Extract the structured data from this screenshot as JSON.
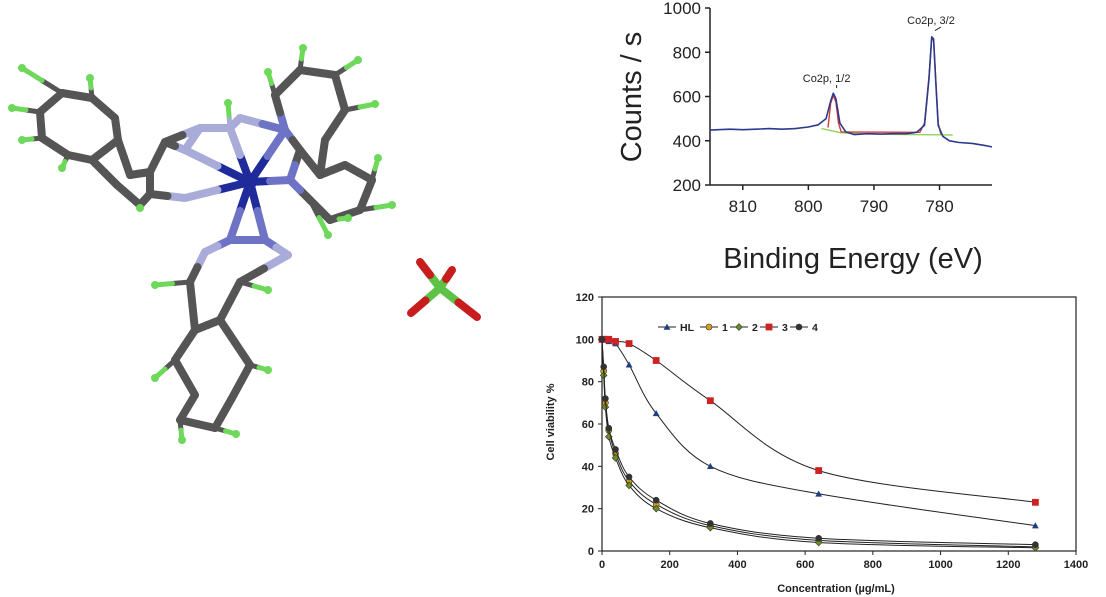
{
  "figure": {
    "molecule": {
      "atom_colors": {
        "C": "#555555",
        "N_ring": "#a9acd8",
        "N_coord": "#6f73c6",
        "Co": "#1f2a9b",
        "H": "#6ed85a",
        "Cl": "#5ec247",
        "O": "#c81d1d"
      }
    }
  },
  "chart_data": [
    {
      "type": "line",
      "ylabel": "Counts / s",
      "xlabel": "Binding Energy (eV)",
      "xlim": [
        815,
        772
      ],
      "ylim": [
        200,
        1000
      ],
      "x_ticks": [
        810,
        800,
        790,
        780
      ],
      "y_ticks": [
        200,
        400,
        600,
        800,
        1000
      ],
      "x_reversed": true,
      "annotations": [
        {
          "text": "Co2p, 1/2",
          "x": 796,
          "y": 620
        },
        {
          "text": "Co2p, 3/2",
          "x": 781,
          "y": 880
        }
      ],
      "series": [
        {
          "role": "spectrum",
          "color": "#2b3a8f",
          "x": [
            815,
            812,
            810,
            808,
            806,
            804,
            802,
            800,
            798.5,
            797.3,
            796.6,
            796.2,
            795.8,
            795.2,
            794.3,
            793,
            791,
            789,
            787,
            785,
            783.5,
            782.3,
            781.6,
            781.2,
            780.9,
            780.6,
            780.2,
            779.5,
            778.5,
            777,
            775,
            773,
            772
          ],
          "y": [
            448,
            452,
            450,
            452,
            455,
            452,
            455,
            462,
            472,
            500,
            580,
            615,
            590,
            480,
            440,
            428,
            432,
            430,
            432,
            432,
            438,
            470,
            680,
            870,
            860,
            680,
            470,
            420,
            400,
            392,
            388,
            378,
            372
          ]
        },
        {
          "role": "fit",
          "color": "#d43a3a",
          "x": [
            797,
            796.6,
            796.2,
            795.8,
            795.4,
            795,
            783,
            782.3,
            781.6,
            781.2,
            780.9,
            780.6,
            780.2,
            779.8
          ],
          "y": [
            460,
            570,
            605,
            575,
            480,
            440,
            438,
            480,
            690,
            860,
            855,
            690,
            480,
            430
          ]
        },
        {
          "role": "background",
          "color": "#8fd45a",
          "x": [
            798,
            795,
            790,
            785,
            780,
            778
          ],
          "y": [
            455,
            436,
            430,
            428,
            427,
            426
          ]
        }
      ]
    },
    {
      "type": "line",
      "ylabel": "Cell viability %",
      "xlabel": "Concentration (µg/mL)",
      "xlim": [
        0,
        1400
      ],
      "ylim": [
        0,
        120
      ],
      "x_ticks": [
        0,
        200,
        400,
        600,
        800,
        1000,
        1200,
        1400
      ],
      "y_ticks": [
        0,
        20,
        40,
        60,
        80,
        100,
        120
      ],
      "legend_position": "top",
      "x": [
        0,
        5,
        10,
        20,
        40,
        80,
        160,
        320,
        640,
        1280
      ],
      "series": [
        {
          "name": "HL",
          "marker": "triangle",
          "color": "#1f3f7f",
          "values": [
            100,
            100,
            100,
            99,
            98,
            88,
            65,
            40,
            27,
            12
          ]
        },
        {
          "name": "1",
          "marker": "circle",
          "color": "#d4a017",
          "values": [
            100,
            85,
            70,
            57,
            46,
            33,
            22,
            12,
            5,
            2
          ]
        },
        {
          "name": "2",
          "marker": "diamond",
          "color": "#6b8e23",
          "values": [
            100,
            83,
            68,
            54,
            44,
            31,
            20,
            11,
            4,
            1.5
          ]
        },
        {
          "name": "3",
          "marker": "square",
          "color": "#cc2222",
          "values": [
            100,
            100,
            100,
            100,
            99,
            98,
            90,
            71,
            38,
            23
          ]
        },
        {
          "name": "4",
          "marker": "circle",
          "color": "#333333",
          "values": [
            100,
            87,
            72,
            58,
            48,
            35,
            24,
            13,
            6,
            3
          ]
        }
      ]
    }
  ]
}
